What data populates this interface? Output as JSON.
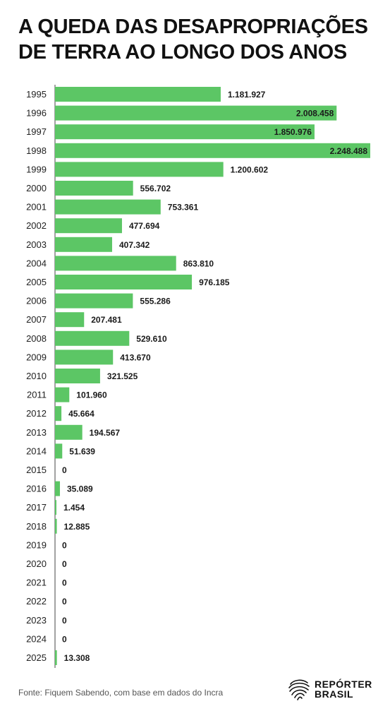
{
  "title": "A QUEDA DAS DESAPROPRIAÇÕES DE TERRA AO LONGO DOS ANOS",
  "source": "Fonte: Fiquem Sabendo, com base em dados do Incra",
  "logo": {
    "line1": "REPÓRTER",
    "line2": "BRASIL",
    "icon": "fingerprint-brazil-map-icon"
  },
  "colors": {
    "bar": "#5cc665",
    "text": "#111111"
  },
  "chart_data": {
    "type": "bar",
    "orientation": "horizontal",
    "title": "A QUEDA DAS DESAPROPRIAÇÕES DE TERRA AO LONGO DOS ANOS",
    "xlabel": "",
    "ylabel": "",
    "grid": false,
    "categories": [
      "1995",
      "1996",
      "1997",
      "1998",
      "1999",
      "2000",
      "2001",
      "2002",
      "2003",
      "2004",
      "2005",
      "2006",
      "2007",
      "2008",
      "2009",
      "2010",
      "2011",
      "2012",
      "2013",
      "2014",
      "2015",
      "2016",
      "2017",
      "2018",
      "2019",
      "2020",
      "2021",
      "2022",
      "2023",
      "2024",
      "2025"
    ],
    "values": [
      1181927,
      2008458,
      1850976,
      2248488,
      1200602,
      556702,
      753361,
      477694,
      407342,
      863810,
      976185,
      555286,
      207481,
      529610,
      413670,
      321525,
      101960,
      45664,
      194567,
      51639,
      0,
      35089,
      1454,
      12885,
      0,
      0,
      0,
      0,
      0,
      0,
      13308
    ],
    "value_labels": [
      "1.181.927",
      "2.008.458",
      "1.850.976",
      "2.248.488",
      "1.200.602",
      "556.702",
      "753.361",
      "477.694",
      "407.342",
      "863.810",
      "976.185",
      "555.286",
      "207.481",
      "529.610",
      "413.670",
      "321.525",
      "101.960",
      "45.664",
      "194.567",
      "51.639",
      "0",
      "35.089",
      "1.454",
      "12.885",
      "0",
      "0",
      "0",
      "0",
      "0",
      "0",
      "13.308"
    ],
    "xlim": [
      0,
      2248488
    ]
  }
}
